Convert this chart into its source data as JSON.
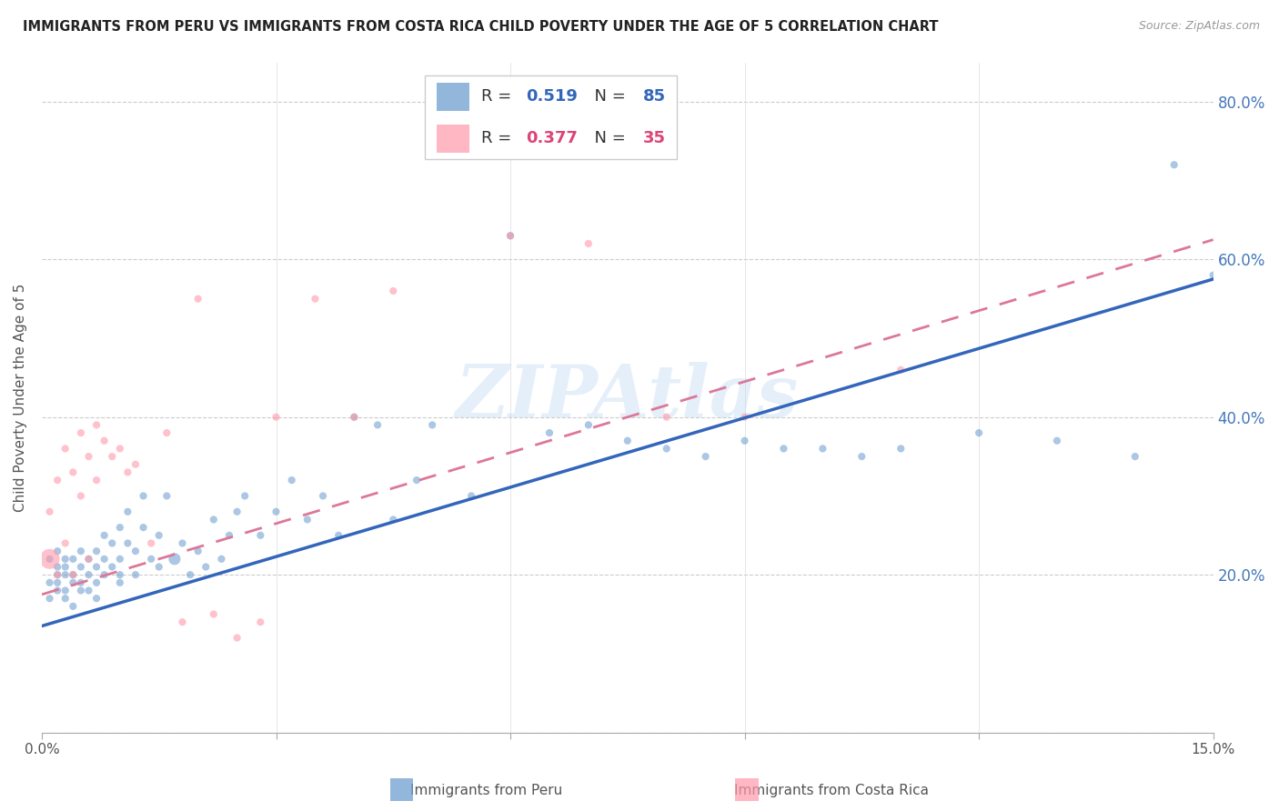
{
  "title": "IMMIGRANTS FROM PERU VS IMMIGRANTS FROM COSTA RICA CHILD POVERTY UNDER THE AGE OF 5 CORRELATION CHART",
  "source": "Source: ZipAtlas.com",
  "ylabel": "Child Poverty Under the Age of 5",
  "x_min": 0.0,
  "x_max": 0.15,
  "y_min": 0.0,
  "y_max": 0.85,
  "peru_R": 0.519,
  "peru_N": 85,
  "costa_rica_R": 0.377,
  "costa_rica_N": 35,
  "peru_color": "#6699CC",
  "costa_rica_color": "#FF99AA",
  "trendline_peru_color": "#3366BB",
  "trendline_costa_rica_color": "#DD7799",
  "background_color": "#FFFFFF",
  "watermark": "ZIPAtlas",
  "peru_trendline_y0": 0.135,
  "peru_trendline_y1": 0.575,
  "costa_trendline_y0": 0.175,
  "costa_trendline_y1": 0.625,
  "peru_scatter_x": [
    0.001,
    0.001,
    0.001,
    0.002,
    0.002,
    0.002,
    0.002,
    0.002,
    0.003,
    0.003,
    0.003,
    0.003,
    0.003,
    0.004,
    0.004,
    0.004,
    0.004,
    0.005,
    0.005,
    0.005,
    0.005,
    0.006,
    0.006,
    0.006,
    0.007,
    0.007,
    0.007,
    0.007,
    0.008,
    0.008,
    0.008,
    0.009,
    0.009,
    0.01,
    0.01,
    0.01,
    0.01,
    0.011,
    0.011,
    0.012,
    0.012,
    0.013,
    0.013,
    0.014,
    0.015,
    0.015,
    0.016,
    0.017,
    0.018,
    0.019,
    0.02,
    0.021,
    0.022,
    0.023,
    0.024,
    0.025,
    0.026,
    0.028,
    0.03,
    0.032,
    0.034,
    0.036,
    0.038,
    0.04,
    0.043,
    0.045,
    0.048,
    0.05,
    0.055,
    0.06,
    0.065,
    0.07,
    0.075,
    0.08,
    0.085,
    0.09,
    0.095,
    0.1,
    0.105,
    0.11,
    0.12,
    0.13,
    0.14,
    0.145,
    0.15
  ],
  "peru_scatter_y": [
    0.19,
    0.22,
    0.17,
    0.2,
    0.18,
    0.21,
    0.19,
    0.23,
    0.2,
    0.17,
    0.22,
    0.18,
    0.21,
    0.19,
    0.22,
    0.16,
    0.2,
    0.21,
    0.18,
    0.23,
    0.19,
    0.2,
    0.22,
    0.18,
    0.21,
    0.19,
    0.23,
    0.17,
    0.2,
    0.22,
    0.25,
    0.21,
    0.24,
    0.19,
    0.22,
    0.26,
    0.2,
    0.24,
    0.28,
    0.23,
    0.2,
    0.26,
    0.3,
    0.22,
    0.25,
    0.21,
    0.3,
    0.22,
    0.24,
    0.2,
    0.23,
    0.21,
    0.27,
    0.22,
    0.25,
    0.28,
    0.3,
    0.25,
    0.28,
    0.32,
    0.27,
    0.3,
    0.25,
    0.4,
    0.39,
    0.27,
    0.32,
    0.39,
    0.3,
    0.63,
    0.38,
    0.39,
    0.37,
    0.36,
    0.35,
    0.37,
    0.36,
    0.36,
    0.35,
    0.36,
    0.38,
    0.37,
    0.35,
    0.72,
    0.58
  ],
  "peru_scatter_sizes": [
    35,
    35,
    35,
    35,
    35,
    35,
    35,
    35,
    35,
    35,
    35,
    35,
    35,
    35,
    35,
    35,
    35,
    35,
    35,
    35,
    35,
    35,
    35,
    35,
    35,
    35,
    35,
    35,
    35,
    35,
    35,
    35,
    35,
    35,
    35,
    35,
    35,
    35,
    35,
    35,
    35,
    35,
    35,
    35,
    35,
    35,
    35,
    90,
    35,
    35,
    35,
    35,
    35,
    35,
    35,
    35,
    35,
    35,
    35,
    35,
    35,
    35,
    35,
    35,
    35,
    35,
    35,
    35,
    35,
    35,
    35,
    35,
    35,
    35,
    35,
    35,
    35,
    35,
    35,
    35,
    35,
    35,
    35,
    35,
    35
  ],
  "costa_rica_scatter_x": [
    0.001,
    0.001,
    0.002,
    0.002,
    0.003,
    0.003,
    0.004,
    0.004,
    0.005,
    0.005,
    0.006,
    0.006,
    0.007,
    0.007,
    0.008,
    0.009,
    0.01,
    0.011,
    0.012,
    0.014,
    0.016,
    0.018,
    0.02,
    0.022,
    0.025,
    0.028,
    0.03,
    0.035,
    0.04,
    0.045,
    0.06,
    0.07,
    0.08,
    0.09,
    0.11
  ],
  "costa_rica_scatter_y": [
    0.22,
    0.28,
    0.32,
    0.2,
    0.36,
    0.24,
    0.33,
    0.2,
    0.38,
    0.3,
    0.35,
    0.22,
    0.39,
    0.32,
    0.37,
    0.35,
    0.36,
    0.33,
    0.34,
    0.24,
    0.38,
    0.14,
    0.55,
    0.15,
    0.12,
    0.14,
    0.4,
    0.55,
    0.4,
    0.56,
    0.63,
    0.62,
    0.4,
    0.4,
    0.46
  ],
  "costa_rica_scatter_sizes": [
    250,
    35,
    35,
    35,
    35,
    35,
    35,
    35,
    35,
    35,
    35,
    35,
    35,
    35,
    35,
    35,
    35,
    35,
    35,
    35,
    35,
    35,
    35,
    35,
    35,
    35,
    35,
    35,
    35,
    35,
    35,
    35,
    35,
    35,
    35
  ]
}
